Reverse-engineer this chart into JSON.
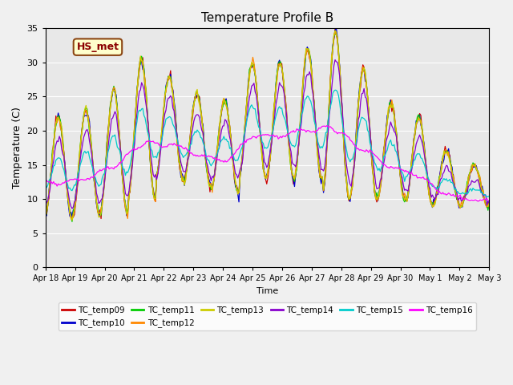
{
  "title": "Temperature Profile B",
  "xlabel": "Time",
  "ylabel": "Temperature (C)",
  "ylim": [
    0,
    35
  ],
  "yticks": [
    0,
    5,
    10,
    15,
    20,
    25,
    30,
    35
  ],
  "date_labels": [
    "Apr 18",
    "Apr 19",
    "Apr 20",
    "Apr 21",
    "Apr 22",
    "Apr 23",
    "Apr 24",
    "Apr 25",
    "Apr 26",
    "Apr 27",
    "Apr 28",
    "Apr 29",
    "Apr 30",
    "May 1",
    "May 2",
    "May 3"
  ],
  "annotation_text": "HS_met",
  "series_colors": {
    "TC_temp09": "#cc0000",
    "TC_temp10": "#0000cc",
    "TC_temp11": "#00cc00",
    "TC_temp12": "#ff8800",
    "TC_temp13": "#cccc00",
    "TC_temp14": "#8800cc",
    "TC_temp15": "#00cccc",
    "TC_temp16": "#ff00ff"
  },
  "legend_order": [
    "TC_temp09",
    "TC_temp10",
    "TC_temp11",
    "TC_temp12",
    "TC_temp13",
    "TC_temp14",
    "TC_temp15",
    "TC_temp16"
  ],
  "n_days": 16,
  "n_pts_per_day": 24,
  "trough_temps": [
    7,
    7.5,
    8,
    10,
    13,
    12,
    11,
    13,
    13,
    13,
    10,
    10,
    10,
    9,
    9,
    9
  ],
  "peak_temps": [
    22,
    23,
    26,
    30.5,
    28,
    25.5,
    24.5,
    30,
    30,
    32,
    34.5,
    29,
    24,
    22,
    17,
    15
  ]
}
